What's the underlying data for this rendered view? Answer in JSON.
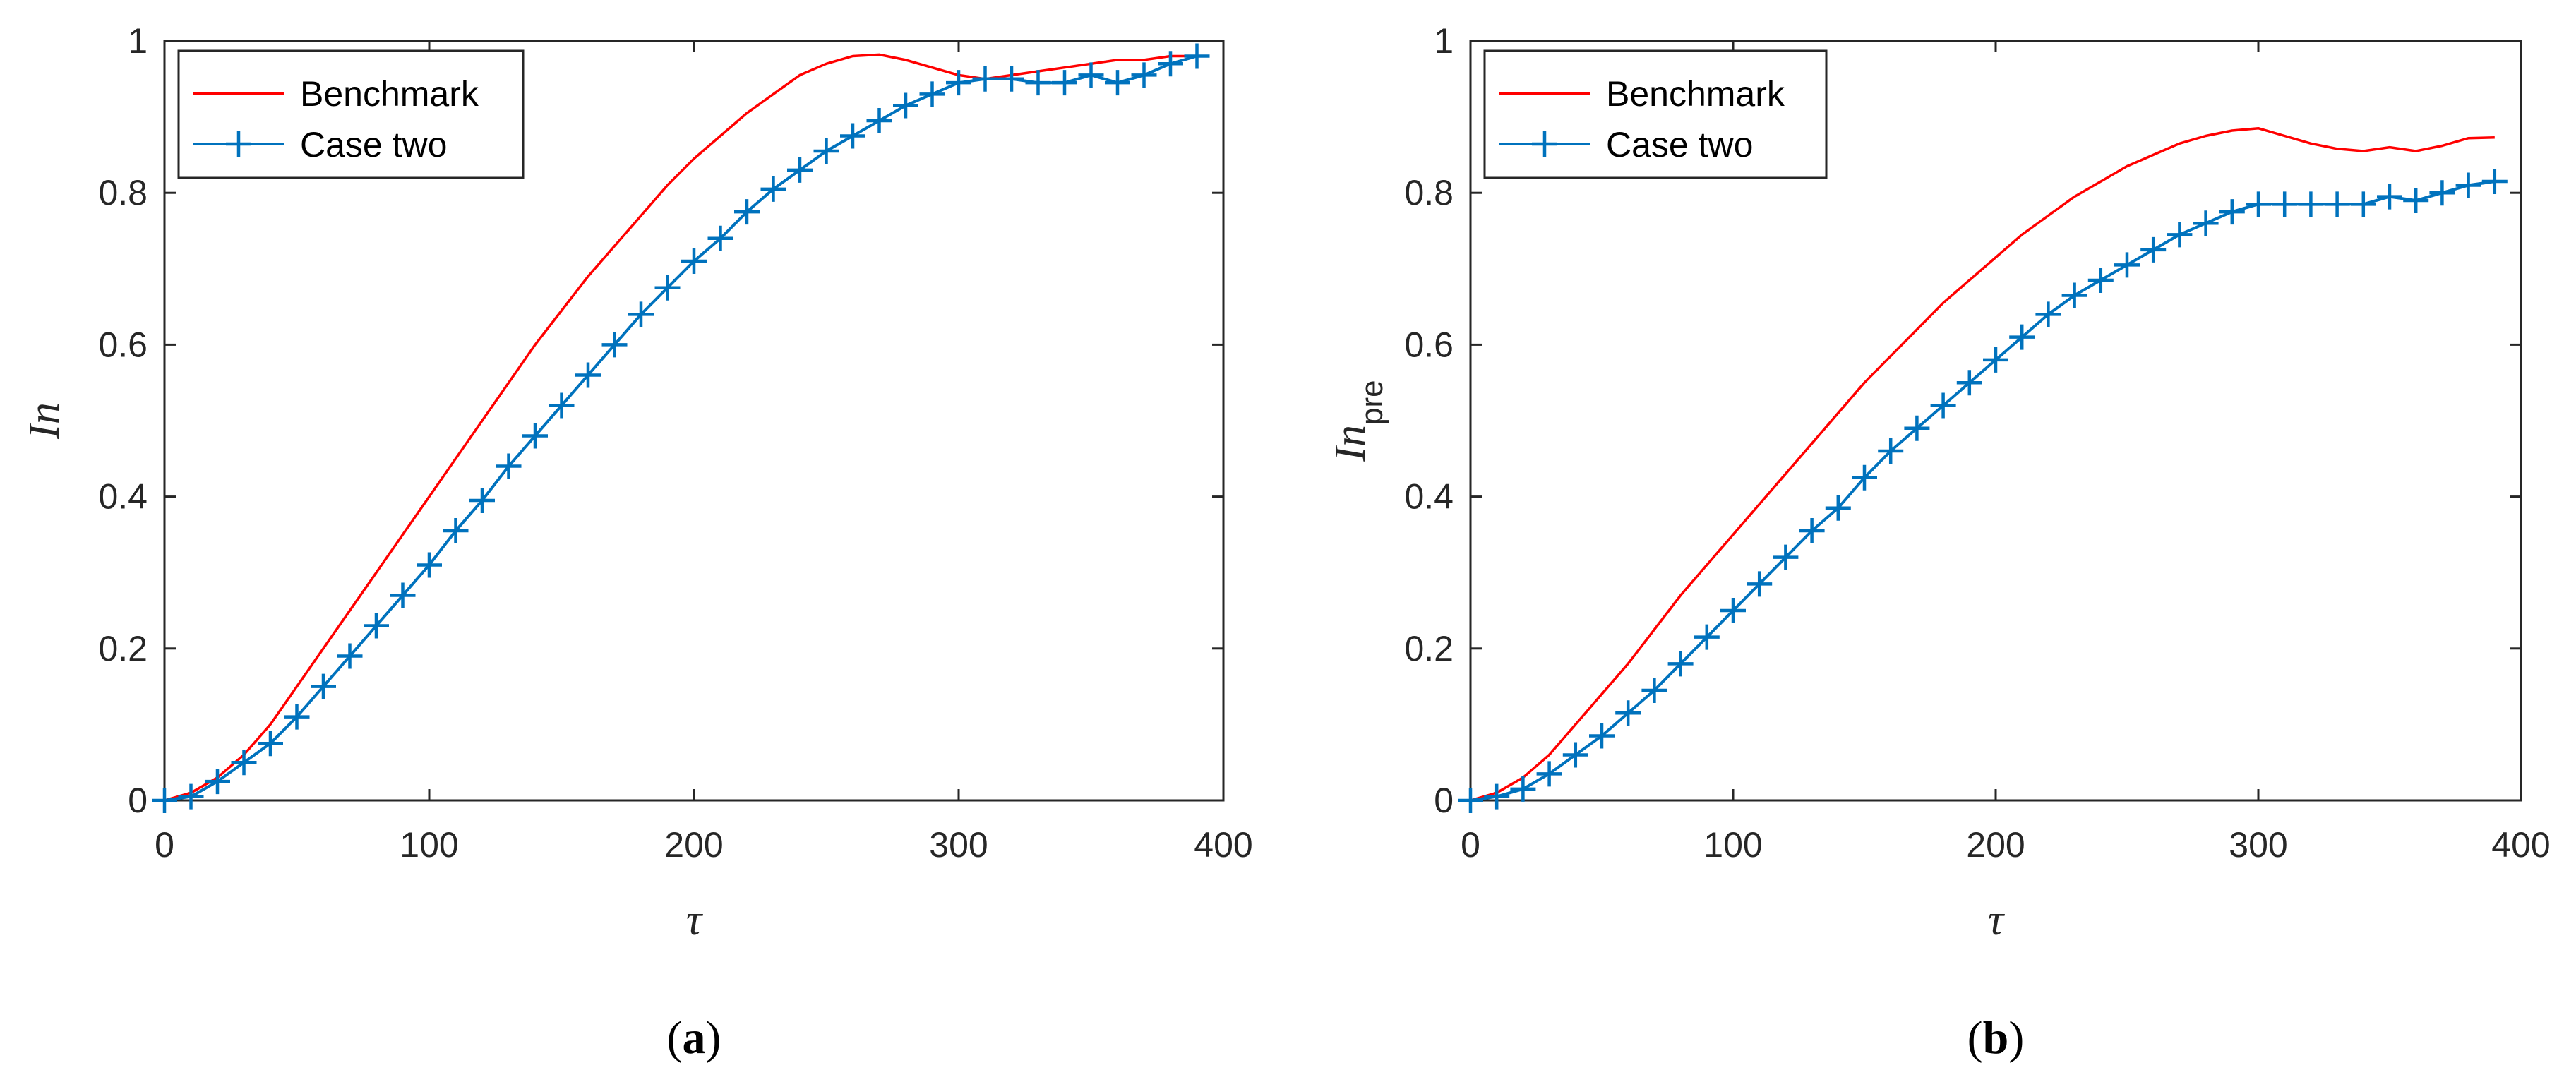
{
  "colors": {
    "benchmark": "#ff0000",
    "case_two": "#0072bd",
    "axis": "#262626"
  },
  "chart_data": [
    {
      "type": "line",
      "panel_label": "a",
      "xlabel": "τ",
      "ylabel": "In",
      "ylabel_sub": "",
      "xlim": [
        0,
        400
      ],
      "ylim": [
        0,
        1
      ],
      "xticks": [
        0,
        100,
        200,
        300,
        400
      ],
      "yticks": [
        0,
        0.2,
        0.4,
        0.6,
        0.8,
        1
      ],
      "xtick_labels": [
        "0",
        "100",
        "200",
        "300",
        "400"
      ],
      "ytick_labels": [
        "0",
        "0.2",
        "0.4",
        "0.6",
        "0.8",
        "1"
      ],
      "grid": false,
      "legend_position": "top-left",
      "series": [
        {
          "name": "Benchmark",
          "marker": "none",
          "x": [
            0,
            10,
            20,
            30,
            40,
            50,
            60,
            70,
            80,
            90,
            100,
            110,
            120,
            130,
            140,
            150,
            160,
            170,
            180,
            190,
            200,
            210,
            220,
            230,
            240,
            250,
            260,
            270,
            280,
            290,
            300,
            310,
            320,
            330,
            340,
            350,
            360,
            370,
            380,
            390
          ],
          "y": [
            0,
            0.01,
            0.03,
            0.06,
            0.1,
            0.15,
            0.2,
            0.25,
            0.3,
            0.35,
            0.4,
            0.45,
            0.5,
            0.55,
            0.6,
            0.645,
            0.69,
            0.73,
            0.77,
            0.81,
            0.845,
            0.875,
            0.905,
            0.93,
            0.955,
            0.97,
            0.98,
            0.982,
            0.975,
            0.965,
            0.955,
            0.95,
            0.955,
            0.96,
            0.965,
            0.97,
            0.975,
            0.975,
            0.98,
            0.98
          ]
        },
        {
          "name": "Case two",
          "marker": "plus",
          "x": [
            0,
            10,
            20,
            30,
            40,
            50,
            60,
            70,
            80,
            90,
            100,
            110,
            120,
            130,
            140,
            150,
            160,
            170,
            180,
            190,
            200,
            210,
            220,
            230,
            240,
            250,
            260,
            270,
            280,
            290,
            300,
            310,
            320,
            330,
            340,
            350,
            360,
            370,
            380,
            390
          ],
          "y": [
            0,
            0.005,
            0.025,
            0.05,
            0.075,
            0.11,
            0.15,
            0.19,
            0.23,
            0.27,
            0.31,
            0.355,
            0.395,
            0.44,
            0.48,
            0.52,
            0.56,
            0.6,
            0.64,
            0.675,
            0.71,
            0.74,
            0.775,
            0.805,
            0.83,
            0.855,
            0.875,
            0.895,
            0.915,
            0.93,
            0.945,
            0.95,
            0.95,
            0.945,
            0.945,
            0.955,
            0.945,
            0.955,
            0.97,
            0.98
          ]
        }
      ]
    },
    {
      "type": "line",
      "panel_label": "b",
      "xlabel": "τ",
      "ylabel": "In",
      "ylabel_sub": "pre",
      "xlim": [
        0,
        400
      ],
      "ylim": [
        0,
        1
      ],
      "xticks": [
        0,
        100,
        200,
        300,
        400
      ],
      "yticks": [
        0,
        0.2,
        0.4,
        0.6,
        0.8,
        1
      ],
      "xtick_labels": [
        "0",
        "100",
        "200",
        "300",
        "400"
      ],
      "ytick_labels": [
        "0",
        "0.2",
        "0.4",
        "0.6",
        "0.8",
        "1"
      ],
      "grid": false,
      "legend_position": "top-left",
      "series": [
        {
          "name": "Benchmark",
          "marker": "none",
          "x": [
            0,
            10,
            20,
            30,
            40,
            50,
            60,
            70,
            80,
            90,
            100,
            110,
            120,
            130,
            140,
            150,
            160,
            170,
            180,
            190,
            200,
            210,
            220,
            230,
            240,
            250,
            260,
            270,
            280,
            290,
            300,
            310,
            320,
            330,
            340,
            350,
            360,
            370,
            380,
            390
          ],
          "y": [
            0,
            0.01,
            0.03,
            0.06,
            0.1,
            0.14,
            0.18,
            0.225,
            0.27,
            0.31,
            0.35,
            0.39,
            0.43,
            0.47,
            0.51,
            0.55,
            0.585,
            0.62,
            0.655,
            0.685,
            0.715,
            0.745,
            0.77,
            0.795,
            0.815,
            0.835,
            0.85,
            0.865,
            0.875,
            0.882,
            0.885,
            0.875,
            0.865,
            0.858,
            0.855,
            0.86,
            0.855,
            0.862,
            0.872,
            0.873
          ]
        },
        {
          "name": "Case two",
          "marker": "plus",
          "x": [
            0,
            10,
            20,
            30,
            40,
            50,
            60,
            70,
            80,
            90,
            100,
            110,
            120,
            130,
            140,
            150,
            160,
            170,
            180,
            190,
            200,
            210,
            220,
            230,
            240,
            250,
            260,
            270,
            280,
            290,
            300,
            310,
            320,
            330,
            340,
            350,
            360,
            370,
            380,
            390
          ],
          "y": [
            0,
            0.005,
            0.015,
            0.035,
            0.06,
            0.085,
            0.115,
            0.145,
            0.18,
            0.215,
            0.25,
            0.285,
            0.32,
            0.355,
            0.385,
            0.425,
            0.46,
            0.49,
            0.52,
            0.55,
            0.58,
            0.61,
            0.64,
            0.665,
            0.685,
            0.705,
            0.725,
            0.745,
            0.76,
            0.775,
            0.785,
            0.785,
            0.785,
            0.785,
            0.785,
            0.795,
            0.79,
            0.8,
            0.81,
            0.815
          ]
        }
      ]
    }
  ]
}
